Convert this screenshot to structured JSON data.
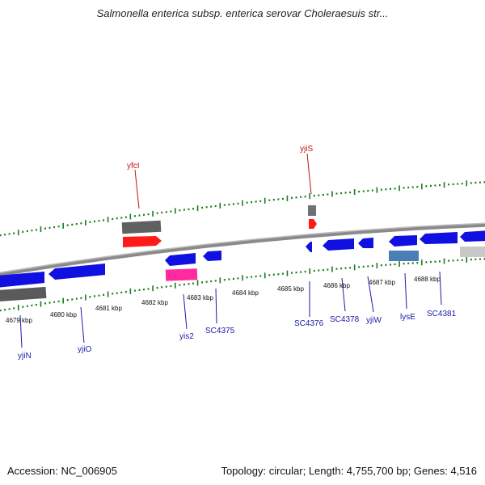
{
  "title": "Salmonella enterica subsp. enterica serovar Choleraesuis str...",
  "footer": {
    "accession": "Accession: NC_006905",
    "summary": "Topology: circular; Length: 4,755,700 bp; Genes: 4,516"
  },
  "colors": {
    "forward": "#ff0000",
    "reverse": "#1010e0",
    "pseudo": "#606060",
    "rna": "#ff2aa0",
    "tick": "#1a7a1a",
    "backbone": "#8a8a8a",
    "label_blue": "#1a1aa8",
    "label_red": "#c01010"
  },
  "scale_labels": [
    "4679 kbp",
    "4680 kbp",
    "4681 kbp",
    "4682 kbp",
    "4683 kbp",
    "4684 kbp",
    "4685 kbp",
    "4686 kbp",
    "4687 kbp",
    "4688 kbp"
  ],
  "gene_labels": [
    {
      "text": "yfcI",
      "color": "red"
    },
    {
      "text": "yjiS",
      "color": "red"
    },
    {
      "text": "yjiN",
      "color": "blue"
    },
    {
      "text": "yjiO",
      "color": "blue"
    },
    {
      "text": "yis2",
      "color": "blue"
    },
    {
      "text": "SC4375",
      "color": "blue"
    },
    {
      "text": "SC4376",
      "color": "blue"
    },
    {
      "text": "SC4378",
      "color": "blue"
    },
    {
      "text": "yjiW",
      "color": "blue"
    },
    {
      "text": "lysE",
      "color": "blue"
    },
    {
      "text": "SC4381",
      "color": "blue"
    }
  ]
}
